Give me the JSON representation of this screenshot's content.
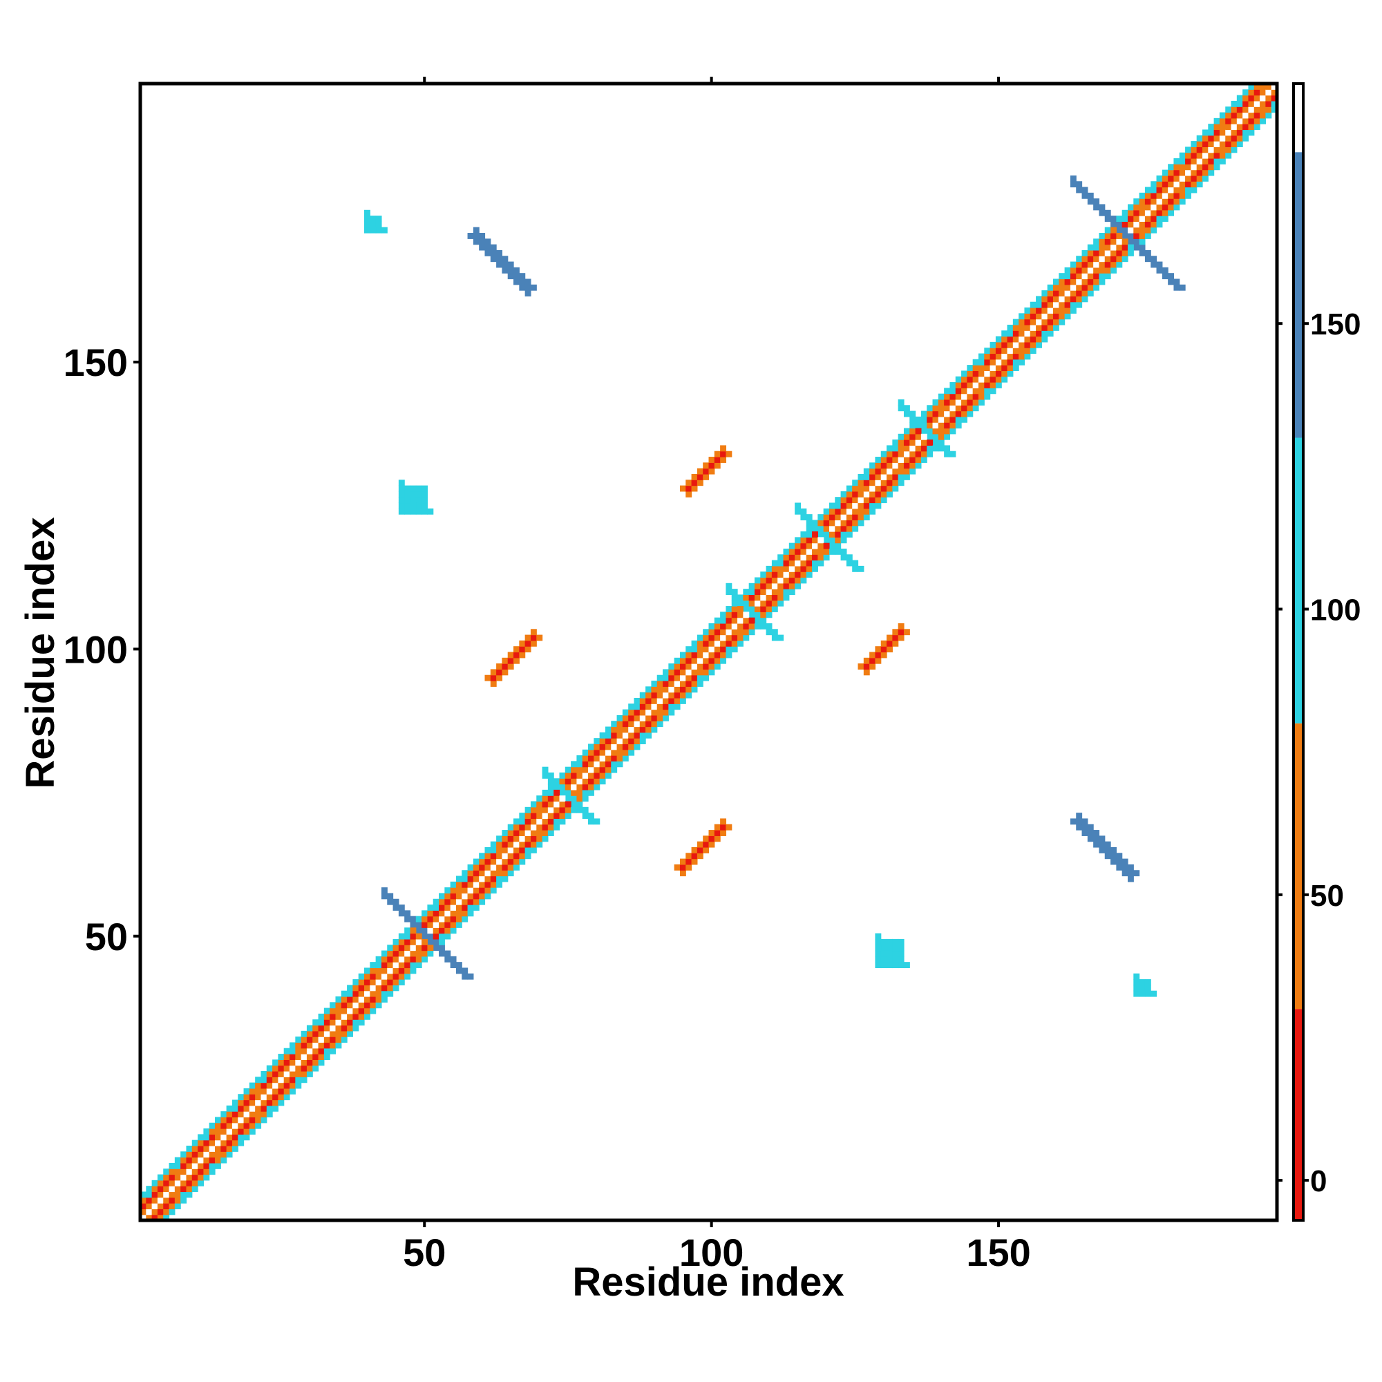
{
  "chart_data": {
    "type": "heatmap",
    "xlabel": "Residue index",
    "ylabel": "Residue index",
    "xlim": [
      1,
      198
    ],
    "ylim": [
      1,
      198
    ],
    "x_ticks": [
      50,
      100,
      150
    ],
    "y_ticks": [
      50,
      100,
      150
    ],
    "grid": false,
    "legend": "colorbar-right",
    "colorbar": {
      "ticks": [
        0,
        50,
        100,
        150
      ],
      "range": [
        -7,
        192
      ],
      "bands": [
        {
          "from": -7,
          "to": 30,
          "color": "#e8180f"
        },
        {
          "from": 30,
          "to": 80,
          "color": "#f07c12"
        },
        {
          "from": 80,
          "to": 130,
          "color": "#2dd2e2"
        },
        {
          "from": 130,
          "to": 180,
          "color": "#4a82b8"
        },
        {
          "from": 180,
          "to": 192,
          "color": "#ffffff"
        }
      ]
    },
    "diagonal_band": {
      "from": 1,
      "to": 198,
      "halfwidth": 4
    },
    "contact_regions": [
      {
        "name": "hairpin-44-58",
        "center": [
          50,
          50
        ],
        "arm": 7,
        "value": 150
      },
      {
        "name": "hairpin-162-180",
        "center": [
          172,
          172
        ],
        "arm": 9,
        "value": 150
      },
      {
        "name": "hairpin-133-140",
        "center": [
          137,
          138
        ],
        "arm": 4,
        "value": 110
      },
      {
        "name": "hairpin-72-78",
        "center": [
          75,
          74
        ],
        "arm": 4,
        "value": 110
      },
      {
        "name": "helix-103-110",
        "center": [
          107,
          106
        ],
        "arm": 4,
        "value": 110
      },
      {
        "name": "helix-115-125",
        "center": [
          120,
          119
        ],
        "arm": 5,
        "value": 110
      },
      {
        "name": "sheet-62-69-vs-95-102",
        "start": [
          62,
          95
        ],
        "end": [
          69,
          102
        ],
        "value": 20
      },
      {
        "name": "sheet-95-102-vs-62-69",
        "start": [
          95,
          62
        ],
        "end": [
          102,
          69
        ],
        "value": 20
      },
      {
        "name": "sheet-96-102-vs-127-134",
        "start": [
          96,
          128
        ],
        "end": [
          102,
          134
        ],
        "value": 20
      },
      {
        "name": "sheet-127-133-vs-96-102",
        "start": [
          127,
          97
        ],
        "end": [
          133,
          103
        ],
        "value": 20
      },
      {
        "name": "strand-59-68-vs-162-171",
        "start": [
          59,
          172
        ],
        "end": [
          68,
          163
        ],
        "value": 155
      },
      {
        "name": "strand-164-173-vs-56-65",
        "start": [
          164,
          70
        ],
        "end": [
          173,
          61
        ],
        "value": 155
      },
      {
        "name": "patch-47-49-vs-126",
        "center": [
          48,
          126
        ],
        "arm": 2,
        "value": 110
      },
      {
        "name": "patch-130-132-vs-47",
        "center": [
          131,
          47
        ],
        "arm": 2,
        "value": 110
      },
      {
        "name": "patch-40-vs-174",
        "center": [
          41,
          174
        ],
        "arm": 1,
        "value": 110
      },
      {
        "name": "patch-174-vs-41",
        "center": [
          175,
          41
        ],
        "arm": 1,
        "value": 110
      }
    ]
  }
}
